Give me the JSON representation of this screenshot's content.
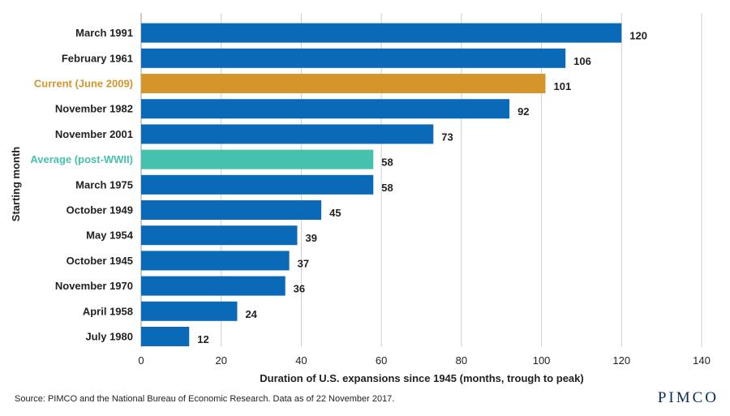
{
  "chart_data": {
    "type": "bar",
    "orientation": "horizontal",
    "categories": [
      "March 1991",
      "February 1961",
      "Current (June 2009)",
      "November 1982",
      "November 2001",
      "Average (post-WWII)",
      "March 1975",
      "October 1949",
      "May 1954",
      "October 1945",
      "November 1970",
      "April 1958",
      "July 1980"
    ],
    "values": [
      120,
      106,
      101,
      92,
      73,
      58,
      58,
      45,
      39,
      37,
      36,
      24,
      12
    ],
    "highlight": {
      "Current (June 2009)": "#d4952b",
      "Average (post-WWII)": "#45c1ad"
    },
    "default_color": "#0a6ab8",
    "xlabel": "Duration of U.S. expansions since 1945 (months, trough to peak)",
    "ylabel": "Starting month",
    "xlim": [
      0,
      140
    ],
    "xticks": [
      0,
      20,
      40,
      60,
      80,
      100,
      120,
      140
    ],
    "grid": "vertical"
  },
  "footer": {
    "source": "Source: PIMCO and the National Bureau of Economic Research. Data as of 22 November 2017.",
    "logo": "PIMCO"
  }
}
